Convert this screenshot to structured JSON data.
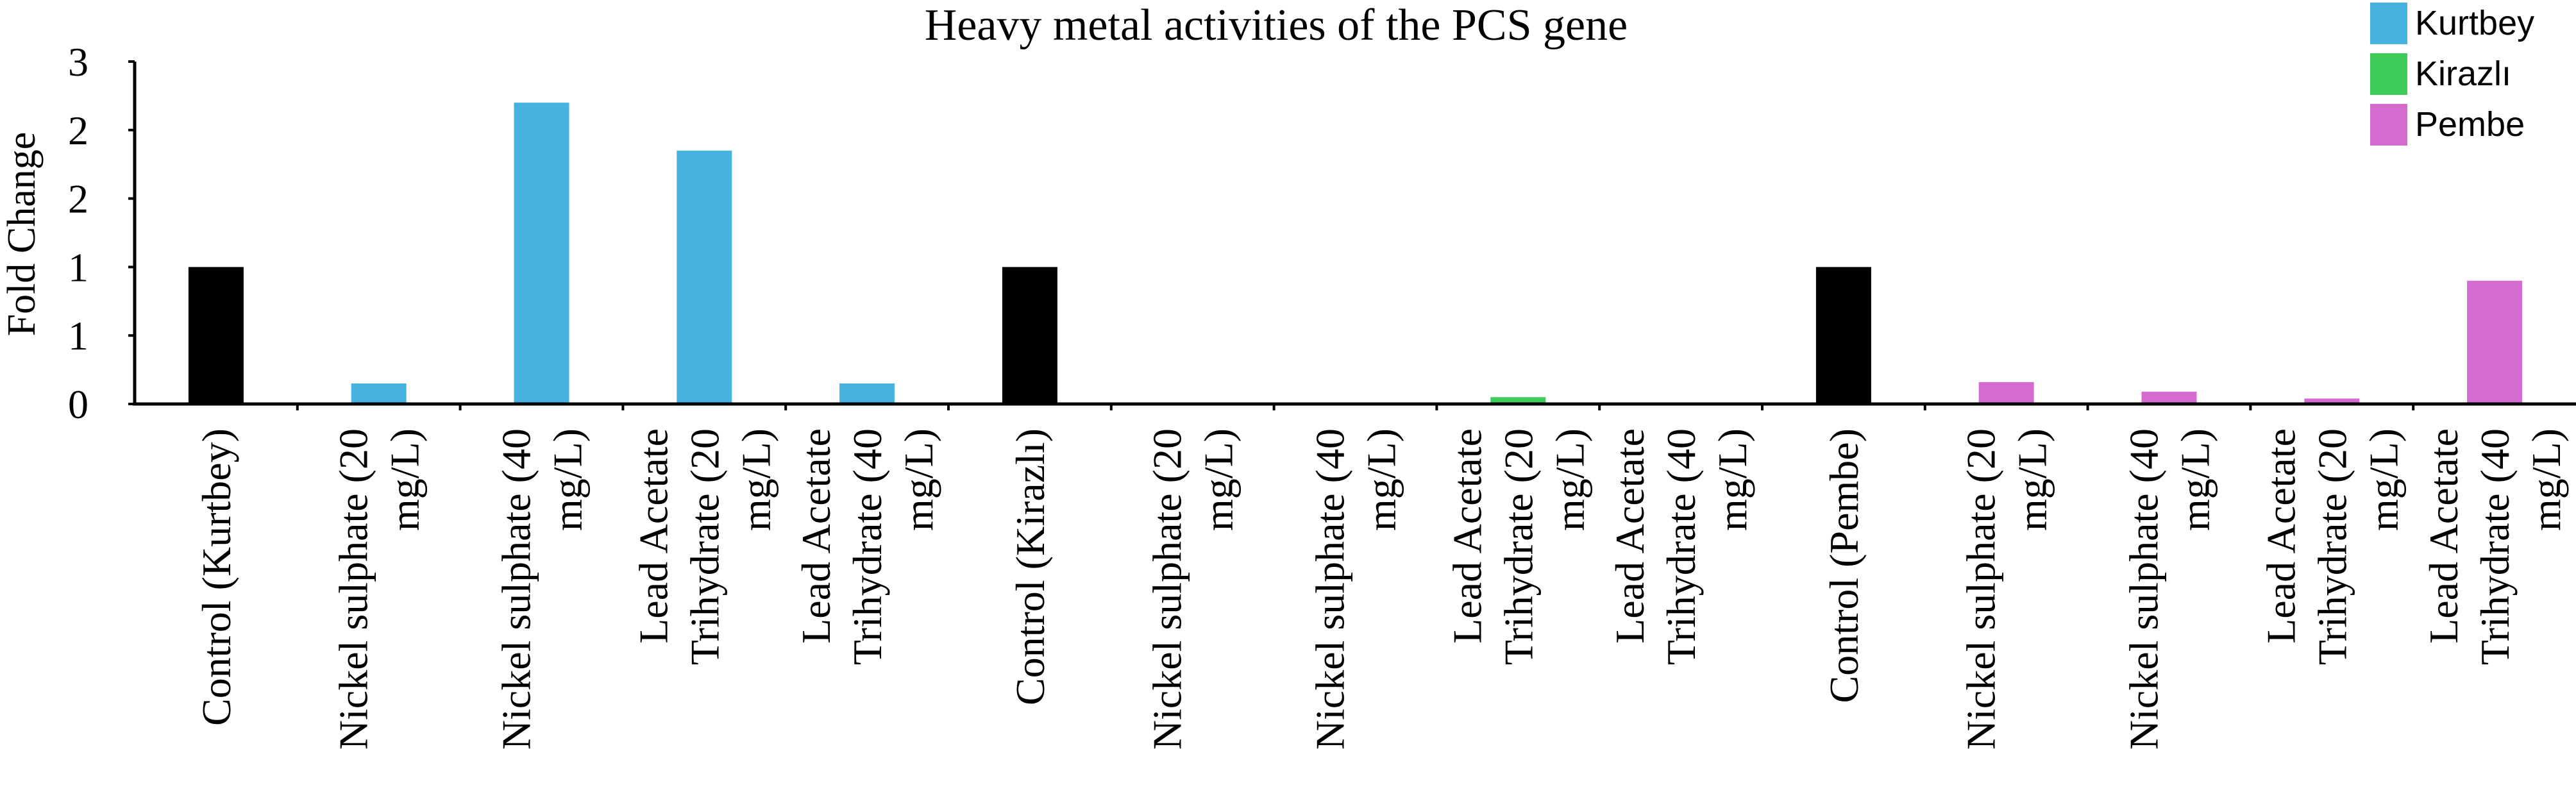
{
  "chart_data": {
    "type": "bar",
    "title": "Heavy metal activities of the PCS gene",
    "ylabel": "Fold Change",
    "xlabel": "",
    "ylim": [
      0,
      2.5
    ],
    "y_ticks": [
      {
        "value": 0,
        "label": "0"
      },
      {
        "value": 0.5,
        "label": "1"
      },
      {
        "value": 1.0,
        "label": "1"
      },
      {
        "value": 1.5,
        "label": "2"
      },
      {
        "value": 2.0,
        "label": "2"
      },
      {
        "value": 2.5,
        "label": "3"
      }
    ],
    "legend": {
      "position": "top-right",
      "entries": [
        {
          "name": "Kurtbey",
          "color": "#47B1E0"
        },
        {
          "name": "Kirazlı",
          "color": "#3FCB5A"
        },
        {
          "name": "Pembe",
          "color": "#D46BCF"
        }
      ]
    },
    "control_color": "#000000",
    "categories": [
      "Control (Kurtbey)",
      "Nickel sulphate (20 mg/L)",
      "Nickel sulphate (40 mg/L)",
      "Lead Acetate Trihydrate (20 mg/L)",
      "Lead Acetate Trihydrate (40 mg/L)",
      "Control (Kirazlı)",
      "Nickel sulphate (20 mg/L)",
      "Nickel sulphate (40 mg/L)",
      "Lead Acetate Trihydrate (20 mg/L)",
      "Lead Acetate Trihydrate (40 mg/L)",
      "Control (Pembe)",
      "Nickel sulphate (20 mg/L)",
      "Nickel sulphate (40 mg/L)",
      "Lead Acetate Trihydrate (20 mg/L)",
      "Lead Acetate Trihydrate (40 mg/L)"
    ],
    "category_label_lines": [
      [
        "Control (Kurtbey)"
      ],
      [
        "Nickel sulphate (20",
        "mg/L)"
      ],
      [
        "Nickel sulphate (40",
        "mg/L)"
      ],
      [
        "Lead Acetate",
        "Trihydrate (20",
        "mg/L)"
      ],
      [
        "Lead Acetate",
        "Trihydrate (40",
        "mg/L)"
      ],
      [
        "Control (Kirazlı)"
      ],
      [
        "Nickel sulphate (20",
        "mg/L)"
      ],
      [
        "Nickel sulphate (40",
        "mg/L)"
      ],
      [
        "Lead Acetate",
        "Trihydrate (20",
        "mg/L)"
      ],
      [
        "Lead Acetate",
        "Trihydrate (40",
        "mg/L)"
      ],
      [
        "Control (Pembe)"
      ],
      [
        "Nickel sulphate (20",
        "mg/L)"
      ],
      [
        "Nickel sulphate (40",
        "mg/L)"
      ],
      [
        "Lead Acetate",
        "Trihydrate (20",
        "mg/L)"
      ],
      [
        "Lead Acetate",
        "Trihydrate (40",
        "mg/L)"
      ]
    ],
    "values": [
      1.0,
      0.15,
      2.2,
      1.85,
      0.15,
      1.0,
      0.0,
      0.0,
      0.05,
      0.0,
      1.0,
      0.16,
      0.09,
      0.04,
      0.9
    ],
    "bar_series": [
      "control",
      "Kurtbey",
      "Kurtbey",
      "Kurtbey",
      "Kurtbey",
      "control",
      "Kirazlı",
      "Kirazlı",
      "Kirazlı",
      "Kirazlı",
      "control",
      "Pembe",
      "Pembe",
      "Pembe",
      "Pembe"
    ],
    "grid": false
  }
}
